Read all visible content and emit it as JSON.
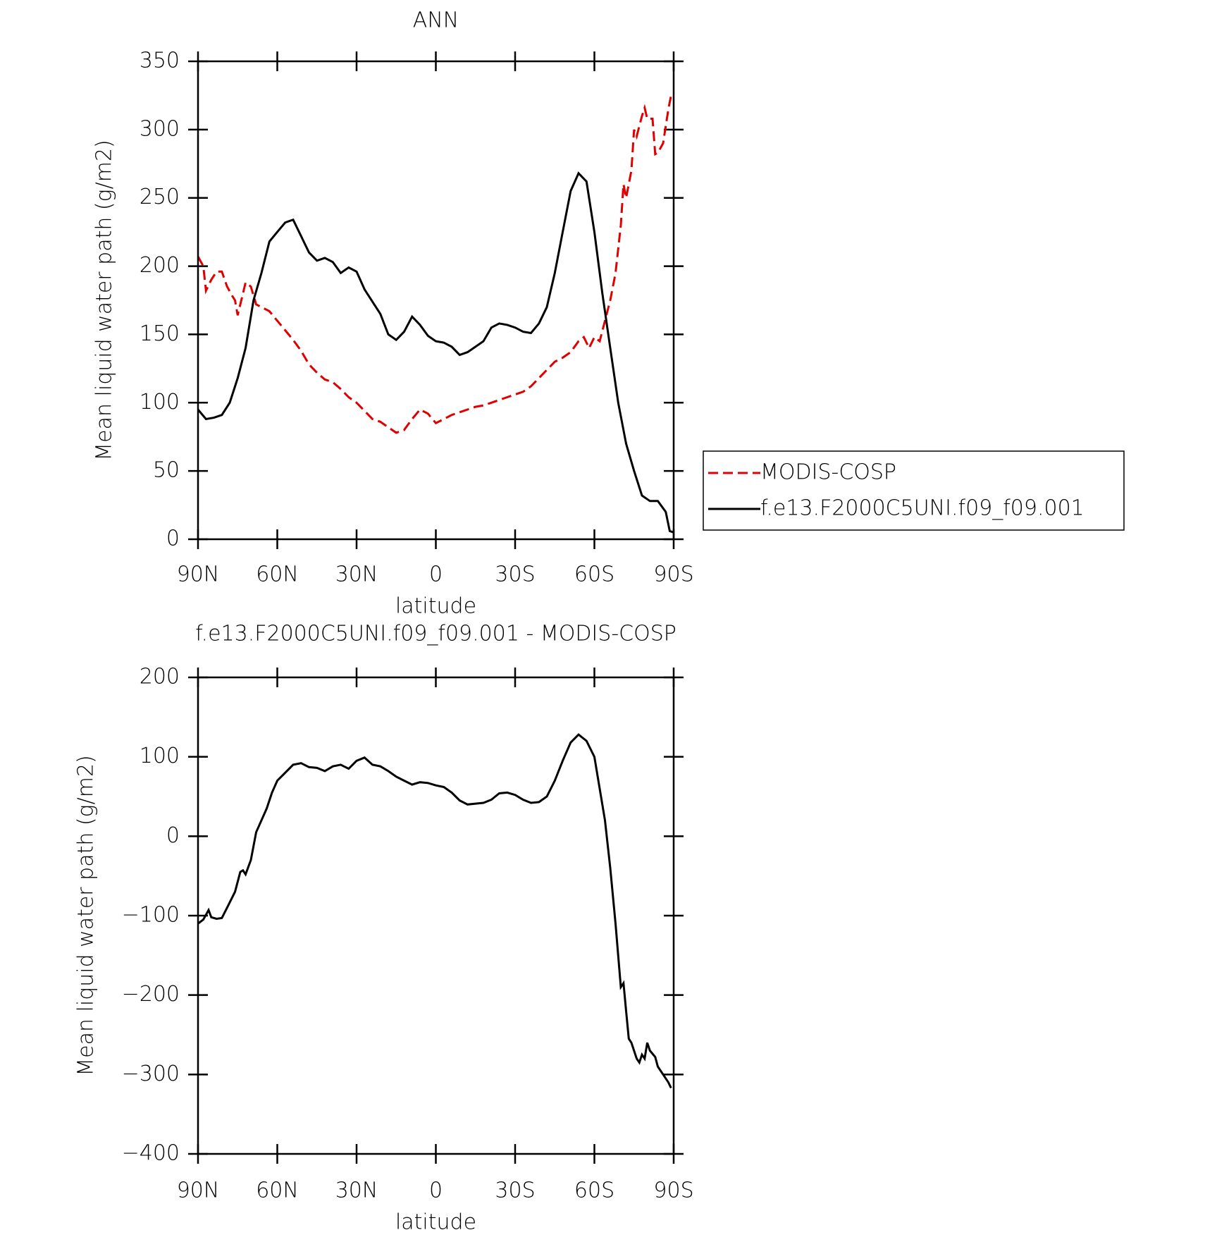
{
  "chart_data": [
    {
      "type": "line",
      "title": "ANN",
      "xlabel": "latitude",
      "ylabel": "Mean liquid water path (g/m2)",
      "xlim": [
        90,
        -90
      ],
      "ylim": [
        0,
        350
      ],
      "xticks": [
        {
          "value": 90,
          "label": "90N"
        },
        {
          "value": 60,
          "label": "60N"
        },
        {
          "value": 30,
          "label": "30N"
        },
        0,
        {
          "value": -30,
          "label": "30S"
        },
        {
          "value": -60,
          "label": "60S"
        },
        {
          "value": -90,
          "label": "90S"
        }
      ],
      "yticks": [
        0,
        50,
        100,
        150,
        200,
        250,
        300,
        350
      ],
      "legend": "outside right",
      "series": [
        {
          "name": "MODIS-COSP",
          "color": "#e00000",
          "line_style": "dashed",
          "x": [
            90,
            88,
            87,
            85,
            83,
            81,
            79,
            77,
            76,
            75,
            73,
            72,
            70,
            68,
            66,
            63,
            60,
            57,
            54,
            51,
            48,
            45,
            42,
            39,
            36,
            33,
            30,
            27,
            24,
            21,
            18,
            15,
            12,
            9,
            6,
            3,
            0,
            -3,
            -6,
            -9,
            -12,
            -15,
            -18,
            -21,
            -24,
            -27,
            -30,
            -33,
            -36,
            -39,
            -42,
            -45,
            -48,
            -51,
            -54,
            -56,
            -58,
            -60,
            -62,
            -64,
            -66,
            -68,
            -70,
            -71,
            -72,
            -74,
            -75,
            -76,
            -78,
            -79,
            -80,
            -82,
            -83,
            -84,
            -86,
            -88,
            -89
          ],
          "values": [
            207,
            200,
            182,
            190,
            196,
            196,
            185,
            178,
            175,
            164,
            180,
            188,
            185,
            172,
            170,
            167,
            160,
            153,
            146,
            138,
            128,
            122,
            117,
            115,
            110,
            104,
            100,
            94,
            88,
            86,
            82,
            78,
            80,
            88,
            95,
            92,
            85,
            88,
            91,
            93,
            95,
            97,
            98,
            100,
            102,
            104,
            106,
            108,
            112,
            118,
            124,
            130,
            133,
            137,
            145,
            148,
            140,
            148,
            145,
            160,
            175,
            195,
            230,
            260,
            250,
            270,
            300,
            295,
            310,
            316,
            308,
            308,
            282,
            283,
            290,
            315,
            325
          ]
        },
        {
          "name": "f.e13.F2000C5UNI.f09_f09.001",
          "color": "#000000",
          "line_style": "solid",
          "x": [
            90,
            87,
            84,
            81,
            78,
            75,
            72,
            69,
            66,
            63,
            60,
            57,
            54,
            51,
            48,
            45,
            42,
            39,
            36,
            33,
            30,
            27,
            24,
            21,
            18,
            15,
            12,
            9,
            6,
            3,
            0,
            -3,
            -6,
            -9,
            -12,
            -15,
            -18,
            -21,
            -24,
            -27,
            -30,
            -33,
            -36,
            -39,
            -42,
            -45,
            -48,
            -51,
            -54,
            -57,
            -60,
            -63,
            -66,
            -69,
            -72,
            -75,
            -78,
            -81,
            -84,
            -87,
            -88.5,
            -90
          ],
          "values": [
            95,
            88,
            89,
            91,
            100,
            118,
            140,
            175,
            195,
            218,
            225,
            232,
            234,
            222,
            210,
            204,
            206,
            203,
            195,
            199,
            196,
            183,
            174,
            165,
            150,
            146,
            152,
            163,
            157,
            149,
            145,
            144,
            141,
            135,
            137,
            141,
            145,
            155,
            158,
            157,
            155,
            152,
            151,
            158,
            170,
            195,
            225,
            255,
            268,
            262,
            225,
            180,
            140,
            100,
            70,
            50,
            32,
            28,
            28,
            20,
            6,
            5
          ]
        }
      ]
    },
    {
      "type": "line",
      "title": "f.e13.F2000C5UNI.f09_f09.001 - MODIS-COSP",
      "xlabel": "latitude",
      "ylabel": "Mean liquid water path (g/m2)",
      "xlim": [
        90,
        -90
      ],
      "ylim": [
        -400,
        200
      ],
      "xticks": [
        {
          "value": 90,
          "label": "90N"
        },
        {
          "value": 60,
          "label": "60N"
        },
        {
          "value": 30,
          "label": "30N"
        },
        0,
        {
          "value": -30,
          "label": "30S"
        },
        {
          "value": -60,
          "label": "60S"
        },
        {
          "value": -90,
          "label": "90S"
        }
      ],
      "yticks": [
        {
          "value": -400,
          "label": "−400"
        },
        {
          "value": -300,
          "label": "−300"
        },
        {
          "value": -200,
          "label": "−200"
        },
        {
          "value": -100,
          "label": "−100"
        },
        0,
        100,
        200
      ],
      "series": [
        {
          "color": "#000000",
          "line_style": "solid",
          "x": [
            90,
            88,
            86,
            85,
            83,
            81,
            79,
            76,
            74,
            73,
            72,
            70,
            68,
            66,
            64,
            62,
            60,
            57,
            54,
            51,
            48,
            45,
            42,
            39,
            36,
            33,
            30,
            27,
            24,
            21,
            18,
            15,
            12,
            9,
            6,
            3,
            0,
            -3,
            -6,
            -9,
            -12,
            -15,
            -18,
            -21,
            -24,
            -27,
            -30,
            -33,
            -36,
            -39,
            -42,
            -45,
            -48,
            -51,
            -54,
            -57,
            -60,
            -62,
            -64,
            -66,
            -68,
            -70,
            -71,
            -72,
            -73,
            -74,
            -76,
            -77,
            -78,
            -79,
            -80,
            -81,
            -83,
            -84,
            -86,
            -88,
            -89
          ],
          "values": [
            -110,
            -105,
            -93,
            -102,
            -104,
            -103,
            -90,
            -70,
            -45,
            -43,
            -48,
            -30,
            5,
            20,
            35,
            55,
            70,
            80,
            90,
            92,
            87,
            86,
            82,
            88,
            90,
            85,
            95,
            99,
            90,
            88,
            82,
            75,
            70,
            65,
            68,
            67,
            64,
            62,
            55,
            45,
            40,
            41,
            42,
            46,
            54,
            55,
            52,
            46,
            42,
            43,
            50,
            70,
            95,
            118,
            128,
            120,
            100,
            60,
            20,
            -40,
            -110,
            -190,
            -185,
            -220,
            -255,
            -260,
            -280,
            -285,
            -275,
            -280,
            -260,
            -270,
            -278,
            -290,
            -300,
            -310,
            -317
          ]
        }
      ]
    }
  ]
}
